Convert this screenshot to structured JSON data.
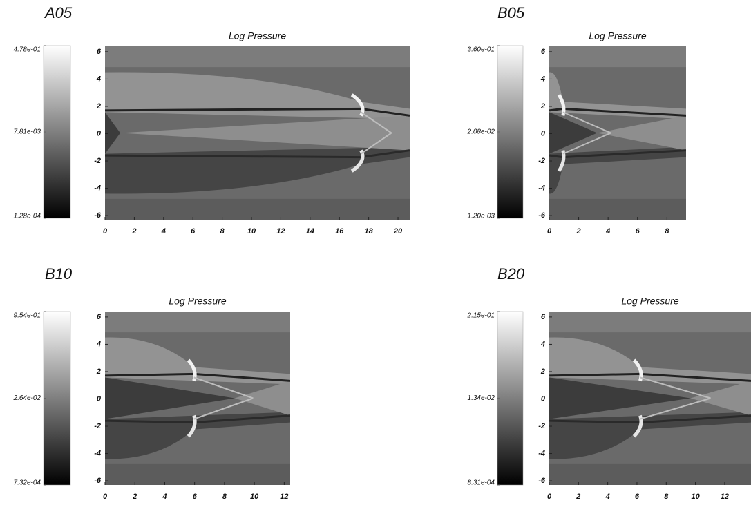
{
  "chart_data": [
    {
      "type": "heatmap",
      "panel": "A05",
      "title": "Log Pressure",
      "xlim": [
        0,
        20.8
      ],
      "xticks": [
        0,
        2,
        4,
        6,
        8,
        10,
        12,
        14,
        16,
        18,
        20
      ],
      "ylim": [
        -6.3,
        6.4
      ],
      "yticks": [
        -6,
        -4,
        -2,
        0,
        2,
        4,
        6
      ],
      "clim": [
        0.000128,
        0.478
      ],
      "color_scale": "log",
      "colormap": "gray",
      "cticks": [
        {
          "value": 0.478,
          "label": "4.78e-01"
        },
        {
          "value": 0.00781,
          "label": "7.81e-03"
        },
        {
          "value": 0.000128,
          "label": "1.28e-04"
        }
      ]
    },
    {
      "type": "heatmap",
      "panel": "B05",
      "title": "Log Pressure",
      "xlim": [
        0,
        9.3
      ],
      "xticks": [
        0,
        2,
        4,
        6,
        8
      ],
      "ylim": [
        -6.3,
        6.4
      ],
      "yticks": [
        -6,
        -4,
        -2,
        0,
        2,
        4,
        6
      ],
      "clim": [
        0.0012,
        0.36
      ],
      "color_scale": "log",
      "colormap": "gray",
      "cticks": [
        {
          "value": 0.36,
          "label": "3.60e-01"
        },
        {
          "value": 0.0208,
          "label": "2.08e-02"
        },
        {
          "value": 0.0012,
          "label": "1.20e-03"
        }
      ]
    },
    {
      "type": "heatmap",
      "panel": "B10",
      "title": "Log Pressure",
      "xlim": [
        0,
        12.4
      ],
      "xticks": [
        0,
        2,
        4,
        6,
        8,
        10,
        12
      ],
      "ylim": [
        -6.3,
        6.4
      ],
      "yticks": [
        -6,
        -4,
        -2,
        0,
        2,
        4,
        6
      ],
      "clim": [
        0.000732,
        0.954
      ],
      "color_scale": "log",
      "colormap": "gray",
      "cticks": [
        {
          "value": 0.954,
          "label": "9.54e-01"
        },
        {
          "value": 0.0264,
          "label": "2.64e-02"
        },
        {
          "value": 0.000732,
          "label": "7.32e-04"
        }
      ]
    },
    {
      "type": "heatmap",
      "panel": "B20",
      "title": "Log Pressure",
      "xlim": [
        0,
        13.8
      ],
      "xticks": [
        0,
        2,
        4,
        6,
        8,
        10,
        12
      ],
      "ylim": [
        -6.3,
        6.4
      ],
      "yticks": [
        -6,
        -4,
        -2,
        0,
        2,
        4,
        6
      ],
      "clim": [
        0.000831,
        0.215
      ],
      "color_scale": "log",
      "colormap": "gray",
      "cticks": [
        {
          "value": 0.215,
          "label": "2.15e-01"
        },
        {
          "value": 0.0134,
          "label": "1.34e-02"
        },
        {
          "value": 0.000831,
          "label": "8.31e-04"
        }
      ]
    }
  ]
}
